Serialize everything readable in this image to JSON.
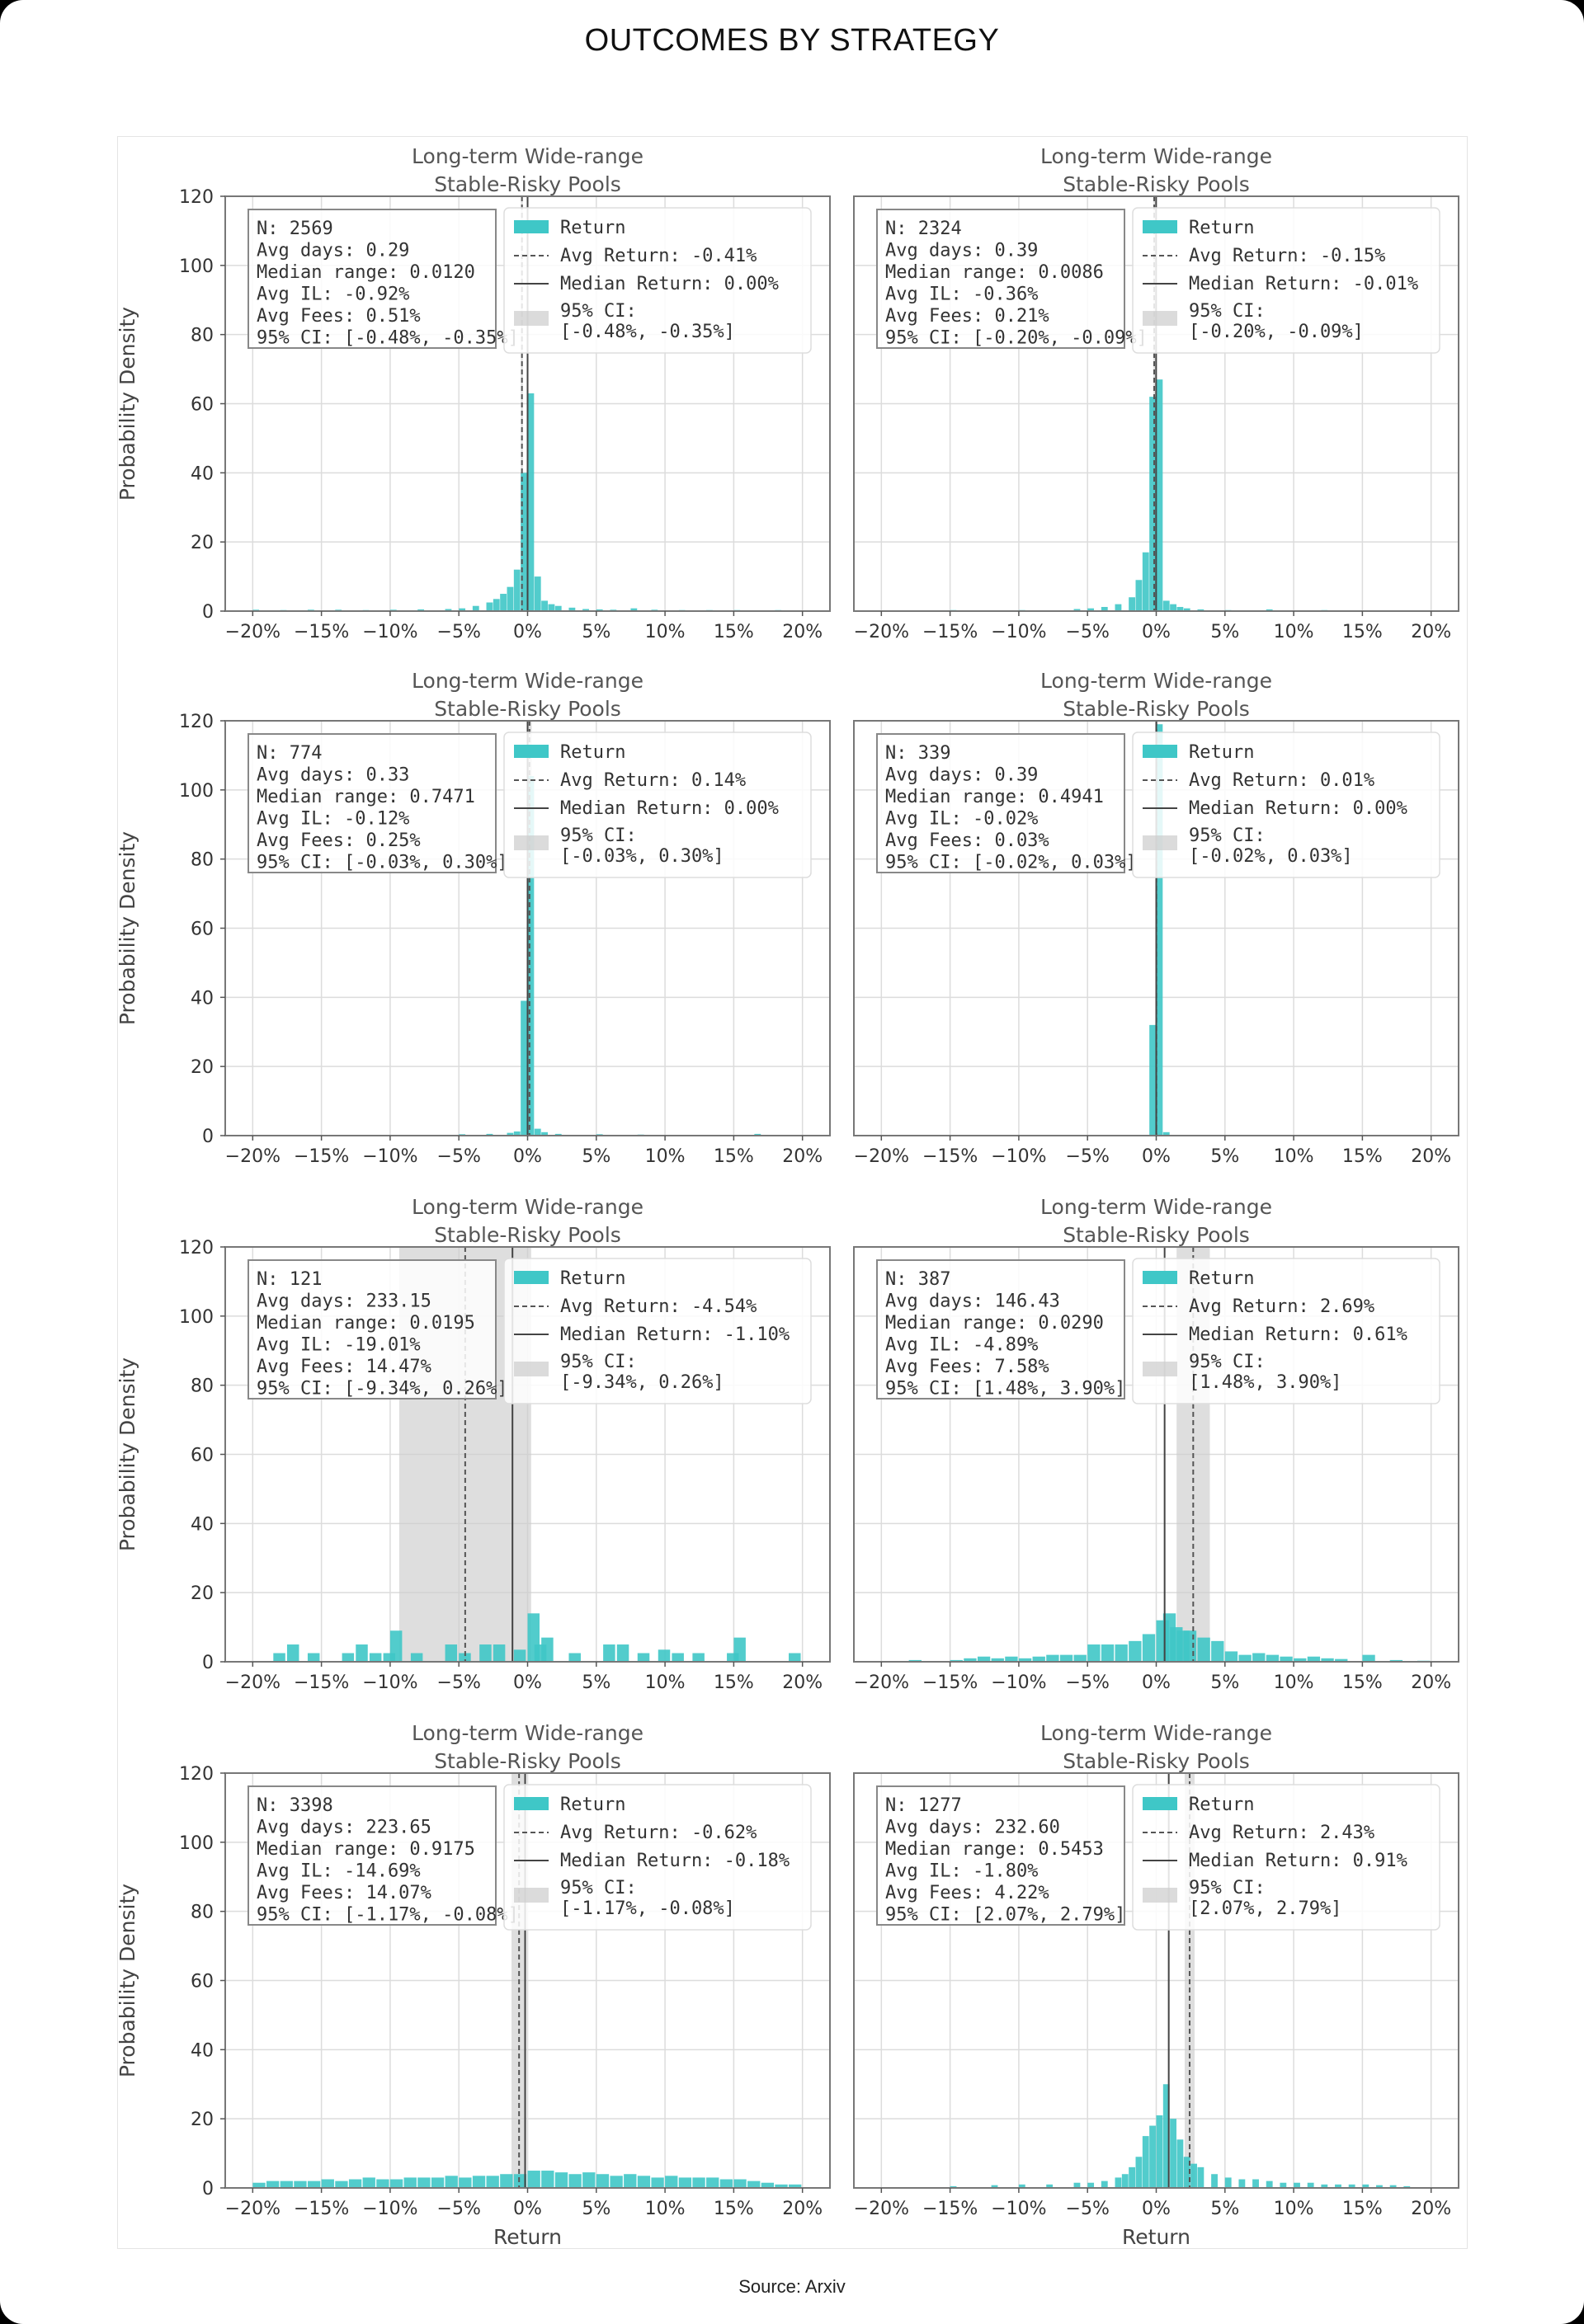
{
  "header": {
    "title": "OUTCOMES BY STRATEGY"
  },
  "footer": {
    "source": "Source: Arxiv"
  },
  "colors": {
    "bar": "#3fc7c7",
    "ci": "#cccccc",
    "grid": "#dcdcdc",
    "frame": "#777777"
  },
  "chart_data": [
    {
      "type": "bar",
      "title": "Long-term Wide-range\nStable-Risky Pools",
      "xlabel": "",
      "ylabel": "Probability Density",
      "xlim": [
        -22,
        22
      ],
      "ylim": [
        0,
        120
      ],
      "xticks": [
        "-20%",
        "-15%",
        "-10%",
        "-5%",
        "0%",
        "5%",
        "10%",
        "15%",
        "20%"
      ],
      "yticks": [
        "0",
        "20",
        "40",
        "60",
        "80",
        "100",
        "120"
      ],
      "stats": [
        "N: 2569",
        "Avg days: 0.29",
        "Median range: 0.0120",
        "Avg IL: -0.92%",
        "Avg Fees: 0.51%",
        "95% CI: [-0.48%, -0.35%]"
      ],
      "legend": {
        "return": "Return",
        "avg": "Avg Return: -0.41%",
        "median": "Median Return: 0.00%",
        "ci_label": "95% CI:",
        "ci_range": "[-0.48%, -0.35%]"
      },
      "avg": -0.41,
      "median": 0.0,
      "ci": [
        -0.48,
        -0.35
      ],
      "bins": [
        [
          -20,
          0.4
        ],
        [
          -18,
          0.3
        ],
        [
          -16,
          0.4
        ],
        [
          -14,
          0.4
        ],
        [
          -12,
          0.3
        ],
        [
          -10,
          0.4
        ],
        [
          -8,
          0.5
        ],
        [
          -6,
          0.6
        ],
        [
          -5,
          0.8
        ],
        [
          -4,
          1.5
        ],
        [
          -3,
          2.5
        ],
        [
          -2.5,
          3.5
        ],
        [
          -2,
          5
        ],
        [
          -1.5,
          7
        ],
        [
          -1,
          12
        ],
        [
          -0.5,
          40
        ],
        [
          0,
          63
        ],
        [
          0.5,
          10
        ],
        [
          1,
          3
        ],
        [
          1.5,
          2
        ],
        [
          2,
          1.5
        ],
        [
          3,
          1
        ],
        [
          4,
          0.6
        ],
        [
          5,
          0.5
        ],
        [
          6,
          0.4
        ],
        [
          7.5,
          0.8
        ],
        [
          9,
          0.4
        ],
        [
          11,
          0.3
        ],
        [
          13,
          0.3
        ],
        [
          15,
          0.3
        ],
        [
          18,
          0.3
        ]
      ],
      "bin_width": 0.5
    },
    {
      "type": "bar",
      "title": "Long-term Wide-range\nStable-Risky Pools",
      "xlabel": "",
      "ylabel": "",
      "xlim": [
        -22,
        22
      ],
      "ylim": [
        0,
        120
      ],
      "xticks": [
        "-20%",
        "-15%",
        "-10%",
        "-5%",
        "0%",
        "5%",
        "10%",
        "15%",
        "20%"
      ],
      "yticks": [],
      "stats": [
        "N: 2324",
        "Avg days: 0.39",
        "Median range: 0.0086",
        "Avg IL: -0.36%",
        "Avg Fees: 0.21%",
        "95% CI: [-0.20%, -0.09%]"
      ],
      "legend": {
        "return": "Return",
        "avg": "Avg Return: -0.15%",
        "median": "Median Return: -0.01%",
        "ci_label": "95% CI:",
        "ci_range": "[-0.20%, -0.09%]"
      },
      "avg": -0.15,
      "median": -0.01,
      "ci": [
        -0.2,
        -0.09
      ],
      "bins": [
        [
          -15,
          0.3
        ],
        [
          -10,
          0.3
        ],
        [
          -6,
          0.6
        ],
        [
          -5,
          0.8
        ],
        [
          -4,
          1.2
        ],
        [
          -3,
          2
        ],
        [
          -2,
          4
        ],
        [
          -1.5,
          9
        ],
        [
          -1,
          17
        ],
        [
          -0.5,
          62
        ],
        [
          0,
          67
        ],
        [
          0.5,
          3
        ],
        [
          1,
          2
        ],
        [
          1.5,
          1.2
        ],
        [
          2,
          0.8
        ],
        [
          3,
          0.5
        ],
        [
          5,
          0.3
        ],
        [
          8,
          0.5
        ],
        [
          12,
          0.3
        ]
      ],
      "bin_width": 0.5
    },
    {
      "type": "bar",
      "title": "Long-term Wide-range\nStable-Risky Pools",
      "xlabel": "",
      "ylabel": "Probability Density",
      "xlim": [
        -22,
        22
      ],
      "ylim": [
        0,
        120
      ],
      "xticks": [
        "-20%",
        "-15%",
        "-10%",
        "-5%",
        "0%",
        "5%",
        "10%",
        "15%",
        "20%"
      ],
      "yticks": [
        "0",
        "20",
        "40",
        "60",
        "80",
        "100",
        "120"
      ],
      "stats": [
        "N: 774",
        "Avg days: 0.33",
        "Median range: 0.7471",
        "Avg IL: -0.12%",
        "Avg Fees: 0.25%",
        "95% CI: [-0.03%, 0.30%]"
      ],
      "legend": {
        "return": "Return",
        "avg": "Avg Return: 0.14%",
        "median": "Median Return: 0.00%",
        "ci_label": "95% CI:",
        "ci_range": "[-0.03%, 0.30%]"
      },
      "avg": 0.14,
      "median": 0.0,
      "ci": [
        -0.03,
        0.3
      ],
      "bins": [
        [
          -5,
          0.4
        ],
        [
          -3,
          0.5
        ],
        [
          -1.5,
          0.8
        ],
        [
          -1,
          1.2
        ],
        [
          -0.5,
          39
        ],
        [
          0,
          104
        ],
        [
          0.5,
          2
        ],
        [
          1,
          1
        ],
        [
          2,
          0.5
        ],
        [
          5,
          0.4
        ],
        [
          8,
          0.3
        ],
        [
          16.5,
          0.5
        ]
      ],
      "bin_width": 0.5
    },
    {
      "type": "bar",
      "title": "Long-term Wide-range\nStable-Risky Pools",
      "xlabel": "",
      "ylabel": "",
      "xlim": [
        -22,
        22
      ],
      "ylim": [
        0,
        120
      ],
      "xticks": [
        "-20%",
        "-15%",
        "-10%",
        "-5%",
        "0%",
        "5%",
        "10%",
        "15%",
        "20%"
      ],
      "yticks": [],
      "stats": [
        "N: 339",
        "Avg days: 0.39",
        "Median range: 0.4941",
        "Avg IL: -0.02%",
        "Avg Fees: 0.03%",
        "95% CI: [-0.02%, 0.03%]"
      ],
      "legend": {
        "return": "Return",
        "avg": "Avg Return: 0.01%",
        "median": "Median Return: 0.00%",
        "ci_label": "95% CI:",
        "ci_range": "[-0.02%, 0.03%]"
      },
      "avg": 0.01,
      "median": 0.0,
      "ci": [
        -0.02,
        0.03
      ],
      "bins": [
        [
          -0.5,
          32
        ],
        [
          0,
          119
        ],
        [
          0.5,
          1
        ]
      ],
      "bin_width": 0.5
    },
    {
      "type": "bar",
      "title": "Long-term Wide-range\nStable-Risky Pools",
      "xlabel": "",
      "ylabel": "Probability Density",
      "xlim": [
        -22,
        22
      ],
      "ylim": [
        0,
        120
      ],
      "xticks": [
        "-20%",
        "-15%",
        "-10%",
        "-5%",
        "0%",
        "5%",
        "10%",
        "15%",
        "20%"
      ],
      "yticks": [
        "0",
        "20",
        "40",
        "60",
        "80",
        "100",
        "120"
      ],
      "stats": [
        "N: 121",
        "Avg days: 233.15",
        "Median range: 0.0195",
        "Avg IL: -19.01%",
        "Avg Fees: 14.47%",
        "95% CI: [-9.34%, 0.26%]"
      ],
      "legend": {
        "return": "Return",
        "avg": "Avg Return: -4.54%",
        "median": "Median Return: -1.10%",
        "ci_label": "95% CI:",
        "ci_range": "[-9.34%, 0.26%]"
      },
      "avg": -4.54,
      "median": -1.1,
      "ci": [
        -9.34,
        0.26
      ],
      "bins": [
        [
          -18.5,
          2.5
        ],
        [
          -17.5,
          5
        ],
        [
          -16,
          2.5
        ],
        [
          -13.5,
          2.5
        ],
        [
          -12.5,
          5
        ],
        [
          -11.5,
          2.5
        ],
        [
          -10.5,
          2.5
        ],
        [
          -10,
          9
        ],
        [
          -8.5,
          2.5
        ],
        [
          -6,
          5
        ],
        [
          -5,
          2.5
        ],
        [
          -3.5,
          5
        ],
        [
          -2.5,
          5
        ],
        [
          -1,
          3.5
        ],
        [
          0,
          14
        ],
        [
          0.5,
          5
        ],
        [
          1,
          7
        ],
        [
          3,
          2.5
        ],
        [
          5.5,
          5
        ],
        [
          6.5,
          5
        ],
        [
          8,
          2.5
        ],
        [
          9.5,
          3.5
        ],
        [
          10.5,
          2.5
        ],
        [
          12,
          2.5
        ],
        [
          14.5,
          2.5
        ],
        [
          15,
          7
        ],
        [
          19,
          2.5
        ]
      ],
      "bin_width": 0.9
    },
    {
      "type": "bar",
      "title": "Long-term Wide-range\nStable-Risky Pools",
      "xlabel": "",
      "ylabel": "",
      "xlim": [
        -22,
        22
      ],
      "ylim": [
        0,
        120
      ],
      "xticks": [
        "-20%",
        "-15%",
        "-10%",
        "-5%",
        "0%",
        "5%",
        "10%",
        "15%",
        "20%"
      ],
      "yticks": [],
      "stats": [
        "N: 387",
        "Avg days: 146.43",
        "Median range: 0.0290",
        "Avg IL: -4.89%",
        "Avg Fees: 7.58%",
        "95% CI: [1.48%, 3.90%]"
      ],
      "legend": {
        "return": "Return",
        "avg": "Avg Return: 2.69%",
        "median": "Median Return: 0.61%",
        "ci_label": "95% CI:",
        "ci_range": "[1.48%, 3.90%]"
      },
      "avg": 2.69,
      "median": 0.61,
      "ci": [
        1.48,
        3.9
      ],
      "bins": [
        [
          -18,
          0.5
        ],
        [
          -15,
          0.5
        ],
        [
          -14,
          1
        ],
        [
          -13,
          1.5
        ],
        [
          -12,
          1
        ],
        [
          -11,
          1.5
        ],
        [
          -10,
          1
        ],
        [
          -9,
          1.5
        ],
        [
          -8,
          2
        ],
        [
          -7,
          2
        ],
        [
          -6,
          2
        ],
        [
          -5,
          5
        ],
        [
          -4,
          5
        ],
        [
          -3,
          5
        ],
        [
          -2,
          6
        ],
        [
          -1,
          8
        ],
        [
          0,
          12
        ],
        [
          0.5,
          14
        ],
        [
          1,
          10
        ],
        [
          1.5,
          9
        ],
        [
          2,
          9
        ],
        [
          3,
          7
        ],
        [
          4,
          6
        ],
        [
          5,
          3
        ],
        [
          6,
          2
        ],
        [
          7,
          2.5
        ],
        [
          8,
          2
        ],
        [
          9,
          1.5
        ],
        [
          10,
          1
        ],
        [
          11,
          1.5
        ],
        [
          12,
          1
        ],
        [
          13,
          0.8
        ],
        [
          15,
          2
        ],
        [
          17,
          0.5
        ],
        [
          19,
          0.3
        ]
      ],
      "bin_width": 0.95
    },
    {
      "type": "bar",
      "title": "Long-term Wide-range\nStable-Risky Pools",
      "xlabel": "Return",
      "ylabel": "Probability Density",
      "xlim": [
        -22,
        22
      ],
      "ylim": [
        0,
        120
      ],
      "xticks": [
        "-20%",
        "-15%",
        "-10%",
        "-5%",
        "0%",
        "5%",
        "10%",
        "15%",
        "20%"
      ],
      "yticks": [
        "0",
        "20",
        "40",
        "60",
        "80",
        "100",
        "120"
      ],
      "stats": [
        "N: 3398",
        "Avg days: 223.65",
        "Median range: 0.9175",
        "Avg IL: -14.69%",
        "Avg Fees: 14.07%",
        "95% CI: [-1.17%, -0.08%]"
      ],
      "legend": {
        "return": "Return",
        "avg": "Avg Return: -0.62%",
        "median": "Median Return: -0.18%",
        "ci_label": "95% CI:",
        "ci_range": "[-1.17%, -0.08%]"
      },
      "avg": -0.62,
      "median": -0.18,
      "ci": [
        -1.17,
        -0.08
      ],
      "bins": [
        [
          -20,
          1.5
        ],
        [
          -19,
          2
        ],
        [
          -18,
          2
        ],
        [
          -17,
          2
        ],
        [
          -16,
          2
        ],
        [
          -15,
          2.5
        ],
        [
          -14,
          2
        ],
        [
          -13,
          2.5
        ],
        [
          -12,
          3
        ],
        [
          -11,
          2.5
        ],
        [
          -10,
          2.5
        ],
        [
          -9,
          3
        ],
        [
          -8,
          3
        ],
        [
          -7,
          3
        ],
        [
          -6,
          3.5
        ],
        [
          -5,
          3
        ],
        [
          -4,
          3.5
        ],
        [
          -3,
          3.5
        ],
        [
          -2,
          4
        ],
        [
          -1,
          4
        ],
        [
          0,
          5
        ],
        [
          1,
          5
        ],
        [
          2,
          4.5
        ],
        [
          3,
          4
        ],
        [
          4,
          4.5
        ],
        [
          5,
          4
        ],
        [
          6,
          3.5
        ],
        [
          7,
          4
        ],
        [
          8,
          3.5
        ],
        [
          9,
          3
        ],
        [
          10,
          3.5
        ],
        [
          11,
          3
        ],
        [
          12,
          3
        ],
        [
          13,
          3
        ],
        [
          14,
          2.5
        ],
        [
          15,
          2.5
        ],
        [
          16,
          2
        ],
        [
          17,
          1.5
        ],
        [
          18,
          1
        ],
        [
          19,
          1
        ]
      ],
      "bin_width": 0.95
    },
    {
      "type": "bar",
      "title": "Long-term Wide-range\nStable-Risky Pools",
      "xlabel": "Return",
      "ylabel": "",
      "xlim": [
        -22,
        22
      ],
      "ylim": [
        0,
        120
      ],
      "xticks": [
        "-20%",
        "-15%",
        "-10%",
        "-5%",
        "0%",
        "5%",
        "10%",
        "15%",
        "20%"
      ],
      "yticks": [],
      "stats": [
        "N: 1277",
        "Avg days: 232.60",
        "Median range: 0.5453",
        "Avg IL: -1.80%",
        "Avg Fees: 4.22%",
        "95% CI: [2.07%, 2.79%]"
      ],
      "legend": {
        "return": "Return",
        "avg": "Avg Return: 2.43%",
        "median": "Median Return: 0.91%",
        "ci_label": "95% CI:",
        "ci_range": "[2.07%, 2.79%]"
      },
      "avg": 2.43,
      "median": 0.91,
      "ci": [
        2.07,
        2.79
      ],
      "bins": [
        [
          -15,
          0.5
        ],
        [
          -12,
          0.8
        ],
        [
          -10,
          1
        ],
        [
          -8,
          1
        ],
        [
          -6,
          1.5
        ],
        [
          -5,
          1.5
        ],
        [
          -4,
          2
        ],
        [
          -3,
          3
        ],
        [
          -2.5,
          4
        ],
        [
          -2,
          6
        ],
        [
          -1.5,
          9
        ],
        [
          -1,
          15
        ],
        [
          -0.5,
          18
        ],
        [
          0,
          21
        ],
        [
          0.5,
          30
        ],
        [
          1,
          20
        ],
        [
          1.5,
          14
        ],
        [
          2,
          9
        ],
        [
          2.5,
          7
        ],
        [
          3,
          6
        ],
        [
          4,
          4
        ],
        [
          5,
          3
        ],
        [
          6,
          2.5
        ],
        [
          7,
          2.5
        ],
        [
          8,
          2
        ],
        [
          9,
          1.5
        ],
        [
          10,
          1.5
        ],
        [
          11,
          1.5
        ],
        [
          12,
          1
        ],
        [
          13,
          1
        ],
        [
          14,
          1
        ],
        [
          15,
          1
        ],
        [
          16,
          0.8
        ],
        [
          17,
          0.8
        ],
        [
          18,
          0.5
        ]
      ],
      "bin_width": 0.5
    }
  ]
}
